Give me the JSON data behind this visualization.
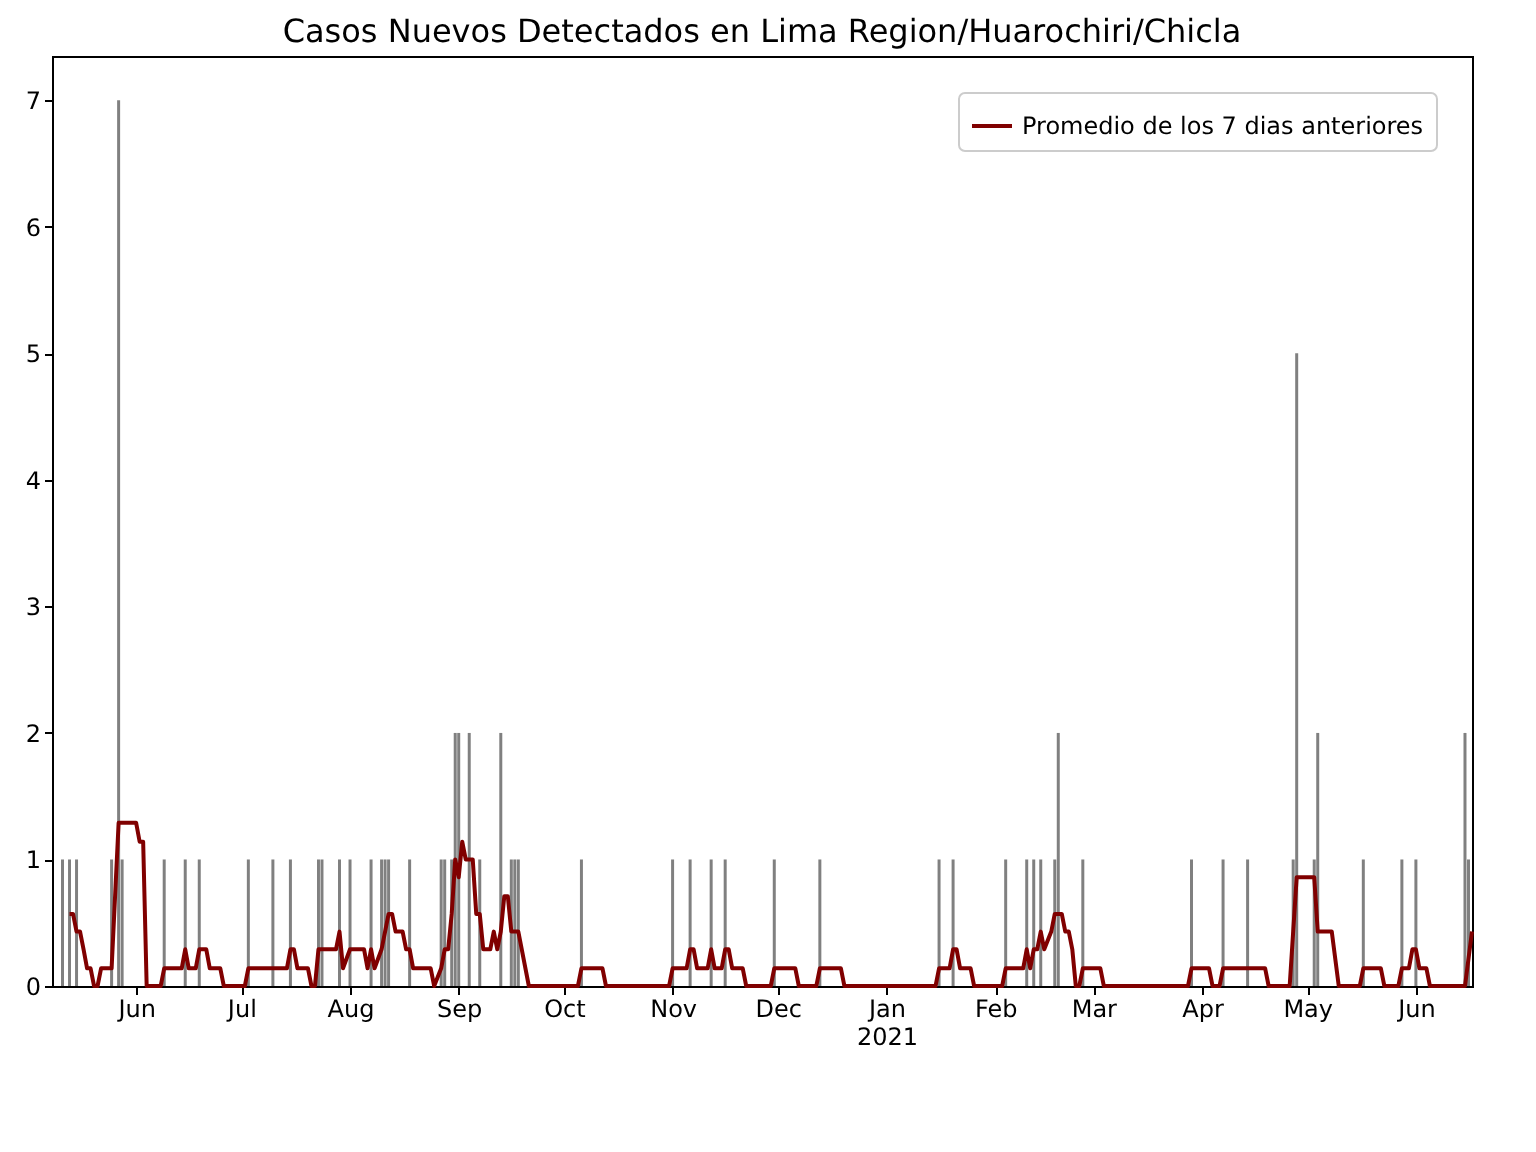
{
  "chart_data": {
    "type": "bar",
    "title": "Casos Nuevos Detectados en Lima Region/Huarochiri/Chicla",
    "xlim": [
      "2020-05-08",
      "2021-06-17"
    ],
    "xticks": [
      {
        "value": "2020-06-01",
        "label": "Jun"
      },
      {
        "value": "2020-07-01",
        "label": "Jul"
      },
      {
        "value": "2020-08-01",
        "label": "Aug"
      },
      {
        "value": "2020-09-01",
        "label": "Sep"
      },
      {
        "value": "2020-10-01",
        "label": "Oct"
      },
      {
        "value": "2020-11-01",
        "label": "Nov"
      },
      {
        "value": "2020-12-01",
        "label": "Dec"
      },
      {
        "value": "2021-01-01",
        "label": "Jan\n2021"
      },
      {
        "value": "2021-02-01",
        "label": "Feb"
      },
      {
        "value": "2021-03-01",
        "label": "Mar"
      },
      {
        "value": "2021-04-01",
        "label": "Apr"
      },
      {
        "value": "2021-05-01",
        "label": "May"
      },
      {
        "value": "2021-06-01",
        "label": "Jun"
      }
    ],
    "ylim": [
      0,
      7.35
    ],
    "yticks": [
      0,
      1,
      2,
      3,
      4,
      5,
      6,
      7
    ],
    "legend": "top right",
    "grid": false,
    "series": [
      {
        "color": "#808080",
        "x": [
          "2020-05-11",
          "2020-05-13",
          "2020-05-15",
          "2020-05-25",
          "2020-05-27",
          "2020-05-28",
          "2020-06-09",
          "2020-06-15",
          "2020-06-19",
          "2020-07-03",
          "2020-07-10",
          "2020-07-15",
          "2020-07-23",
          "2020-07-24",
          "2020-07-29",
          "2020-08-01",
          "2020-08-07",
          "2020-08-10",
          "2020-08-11",
          "2020-08-12",
          "2020-08-18",
          "2020-08-27",
          "2020-08-28",
          "2020-08-30",
          "2020-08-31",
          "2020-09-01",
          "2020-09-04",
          "2020-09-07",
          "2020-09-13",
          "2020-09-16",
          "2020-09-17",
          "2020-09-18",
          "2020-10-06",
          "2020-11-01",
          "2020-11-06",
          "2020-11-12",
          "2020-11-16",
          "2020-11-30",
          "2020-12-13",
          "2021-01-16",
          "2021-01-20",
          "2021-02-04",
          "2021-02-10",
          "2021-02-12",
          "2021-02-14",
          "2021-02-18",
          "2021-02-19",
          "2021-02-26",
          "2021-03-29",
          "2021-04-07",
          "2021-04-14",
          "2021-04-27",
          "2021-04-28",
          "2021-05-03",
          "2021-05-04",
          "2021-05-17",
          "2021-05-28",
          "2021-06-01",
          "2021-06-15",
          "2021-06-16"
        ],
        "values": [
          1,
          1,
          1,
          1,
          7,
          1,
          1,
          1,
          1,
          1,
          1,
          1,
          1,
          1,
          1,
          1,
          1,
          1,
          1,
          1,
          1,
          1,
          1,
          1,
          2,
          2,
          2,
          1,
          2,
          1,
          1,
          1,
          1,
          1,
          1,
          1,
          1,
          1,
          1,
          1,
          1,
          1,
          1,
          1,
          1,
          1,
          2,
          1,
          1,
          1,
          1,
          1,
          5,
          1,
          2,
          1,
          1,
          1,
          2,
          1
        ]
      },
      {
        "type": "line",
        "name": "Promedio de los 7 dias anteriores",
        "color": "#800000",
        "x": [
          "2020-05-13",
          "2020-05-14",
          "2020-05-15",
          "2020-05-16",
          "2020-05-17",
          "2020-05-18",
          "2020-05-19",
          "2020-05-20",
          "2020-05-21",
          "2020-05-22",
          "2020-05-23",
          "2020-05-25",
          "2020-05-27",
          "2020-06-01",
          "2020-06-02",
          "2020-06-03",
          "2020-06-04",
          "2020-06-08",
          "2020-06-09",
          "2020-06-14",
          "2020-06-15",
          "2020-06-16",
          "2020-06-18",
          "2020-06-19",
          "2020-06-21",
          "2020-06-22",
          "2020-06-25",
          "2020-06-26",
          "2020-07-02",
          "2020-07-03",
          "2020-07-14",
          "2020-07-15",
          "2020-07-16",
          "2020-07-17",
          "2020-07-20",
          "2020-07-21",
          "2020-07-22",
          "2020-07-23",
          "2020-07-28",
          "2020-07-29",
          "2020-07-30",
          "2020-08-01",
          "2020-08-05",
          "2020-08-06",
          "2020-08-07",
          "2020-08-08",
          "2020-08-10",
          "2020-08-12",
          "2020-08-13",
          "2020-08-14",
          "2020-08-16",
          "2020-08-17",
          "2020-08-18",
          "2020-08-19",
          "2020-08-24",
          "2020-08-25",
          "2020-08-27",
          "2020-08-28",
          "2020-08-29",
          "2020-08-30",
          "2020-08-31",
          "2020-09-01",
          "2020-09-02",
          "2020-09-03",
          "2020-09-05",
          "2020-09-06",
          "2020-09-07",
          "2020-09-08",
          "2020-09-10",
          "2020-09-11",
          "2020-09-12",
          "2020-09-13",
          "2020-09-14",
          "2020-09-15",
          "2020-09-16",
          "2020-09-18",
          "2020-09-21",
          "2020-10-05",
          "2020-10-06",
          "2020-10-12",
          "2020-10-13",
          "2020-10-31",
          "2020-11-01",
          "2020-11-05",
          "2020-11-06",
          "2020-11-07",
          "2020-11-08",
          "2020-11-11",
          "2020-11-12",
          "2020-11-13",
          "2020-11-15",
          "2020-11-16",
          "2020-11-17",
          "2020-11-18",
          "2020-11-21",
          "2020-11-22",
          "2020-11-29",
          "2020-11-30",
          "2020-12-06",
          "2020-12-07",
          "2020-12-12",
          "2020-12-13",
          "2020-12-19",
          "2020-12-20",
          "2021-01-15",
          "2021-01-16",
          "2021-01-19",
          "2021-01-20",
          "2021-01-21",
          "2021-01-22",
          "2021-01-25",
          "2021-01-26",
          "2021-02-03",
          "2021-02-04",
          "2021-02-09",
          "2021-02-10",
          "2021-02-11",
          "2021-02-12",
          "2021-02-13",
          "2021-02-14",
          "2021-02-15",
          "2021-02-17",
          "2021-02-18",
          "2021-02-20",
          "2021-02-21",
          "2021-02-22",
          "2021-02-23",
          "2021-02-24",
          "2021-02-25",
          "2021-02-26",
          "2021-03-03",
          "2021-03-04",
          "2021-03-28",
          "2021-03-29",
          "2021-04-03",
          "2021-04-04",
          "2021-04-06",
          "2021-04-07",
          "2021-04-19",
          "2021-04-20",
          "2021-04-26",
          "2021-04-28",
          "2021-05-03",
          "2021-05-04",
          "2021-05-08",
          "2021-05-10",
          "2021-05-16",
          "2021-05-17",
          "2021-05-22",
          "2021-05-23",
          "2021-05-27",
          "2021-05-28",
          "2021-05-30",
          "2021-05-31",
          "2021-06-01",
          "2021-06-02",
          "2021-06-04",
          "2021-06-05",
          "2021-06-15",
          "2021-06-17"
        ],
        "values": [
          0.57,
          0.57,
          0.43,
          0.43,
          0.29,
          0.14,
          0.14,
          0,
          0,
          0.14,
          0.14,
          0.14,
          1.29,
          1.29,
          1.14,
          1.14,
          0,
          0,
          0.14,
          0.14,
          0.29,
          0.14,
          0.14,
          0.29,
          0.29,
          0.14,
          0.14,
          0,
          0,
          0.14,
          0.14,
          0.29,
          0.29,
          0.14,
          0.14,
          0,
          0,
          0.29,
          0.29,
          0.43,
          0.14,
          0.29,
          0.29,
          0.14,
          0.29,
          0.14,
          0.29,
          0.57,
          0.57,
          0.43,
          0.43,
          0.29,
          0.29,
          0.14,
          0.14,
          0,
          0.14,
          0.29,
          0.29,
          0.57,
          1.0,
          0.86,
          1.14,
          1.0,
          1.0,
          0.57,
          0.57,
          0.29,
          0.29,
          0.43,
          0.29,
          0.43,
          0.71,
          0.71,
          0.43,
          0.43,
          0,
          0,
          0.14,
          0.14,
          0,
          0,
          0.14,
          0.14,
          0.29,
          0.29,
          0.14,
          0.14,
          0.29,
          0.14,
          0.14,
          0.29,
          0.29,
          0.14,
          0.14,
          0,
          0,
          0.14,
          0.14,
          0,
          0,
          0.14,
          0.14,
          0,
          0,
          0.14,
          0.14,
          0.29,
          0.29,
          0.14,
          0.14,
          0,
          0,
          0.14,
          0.14,
          0.29,
          0.14,
          0.29,
          0.29,
          0.43,
          0.29,
          0.43,
          0.57,
          0.57,
          0.43,
          0.43,
          0.29,
          0,
          0,
          0.14,
          0.14,
          0,
          0,
          0.14,
          0.14,
          0,
          0,
          0.14,
          0.14,
          0,
          0,
          0.86,
          0.86,
          0.43,
          0.43,
          0,
          0,
          0.14,
          0.14,
          0,
          0,
          0.14,
          0.14,
          0.29,
          0.29,
          0.14,
          0.14,
          0,
          0,
          0.43
        ]
      }
    ]
  }
}
